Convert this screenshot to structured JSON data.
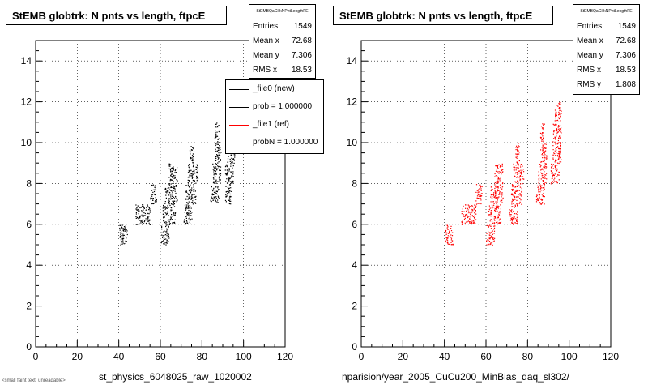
{
  "panels": [
    {
      "title": "StEMB globtrk: N pnts vs length, ftpcE",
      "stats_header": "StEMBQaGlrkNPntLengthFE",
      "stats": [
        {
          "label": "Entries",
          "value": "1549"
        },
        {
          "label": "Mean x",
          "value": "72.68"
        },
        {
          "label": "Mean y",
          "value": "7.306"
        },
        {
          "label": "RMS x",
          "value": "18.53"
        }
      ],
      "x_file_label": "st_physics_6048025_raw_1020002"
    },
    {
      "title": "StEMB globtrk: N pnts vs length, ftpcE",
      "stats_header": "StEMBQaGlrkNPntLengthFE",
      "stats": [
        {
          "label": "Entries",
          "value": "1549"
        },
        {
          "label": "Mean x",
          "value": "72.68"
        },
        {
          "label": "Mean y",
          "value": "7.306"
        },
        {
          "label": "RMS x",
          "value": "18.53"
        },
        {
          "label": "RMS y",
          "value": "1.808"
        }
      ],
      "x_file_label": "nparision/year_2005_CuCu200_MinBias_daq_sl302/"
    }
  ],
  "legend": {
    "entries": [
      {
        "label": "_file0 (new)",
        "color": "#000000"
      },
      {
        "label": "prob = 1.000000",
        "color": "#000000"
      },
      {
        "label": "_file1 (ref)",
        "color": "#ff0000"
      },
      {
        "label": "probN = 1.000000",
        "color": "#ff0000"
      }
    ]
  },
  "footer": "<small faint text, unreadable>",
  "chart_data": [
    {
      "type": "scatter",
      "title": "StEMB globtrk: N pnts vs length, ftpcE",
      "xlabel": "st_physics_6048025_raw_1020002",
      "ylabel": "",
      "xlim": [
        0,
        120
      ],
      "ylim": [
        0,
        15
      ],
      "x_ticks": [
        0,
        20,
        40,
        60,
        80,
        100,
        120
      ],
      "y_ticks": [
        0,
        2,
        4,
        6,
        8,
        10,
        12,
        14
      ],
      "grid": true,
      "series": [
        {
          "color": "#000000",
          "bands": [
            {
              "y": 5,
              "x": [
                40,
                44
              ]
            },
            {
              "y": 6,
              "x": [
                48,
                55
              ]
            },
            {
              "y": 7,
              "x": [
                55,
                58
              ]
            },
            {
              "y": 5,
              "x": [
                60,
                64
              ]
            },
            {
              "y": 6,
              "x": [
                61,
                67
              ]
            },
            {
              "y": 7,
              "x": [
                62,
                68
              ]
            },
            {
              "y": 8,
              "x": [
                64,
                68
              ]
            },
            {
              "y": 6,
              "x": [
                71,
                75
              ]
            },
            {
              "y": 7,
              "x": [
                72,
                77
              ]
            },
            {
              "y": 8,
              "x": [
                73,
                78
              ]
            },
            {
              "y": 9,
              "x": [
                74,
                76
              ]
            },
            {
              "y": 7,
              "x": [
                84,
                88
              ]
            },
            {
              "y": 8,
              "x": [
                85,
                89
              ]
            },
            {
              "y": 9,
              "x": [
                86,
                89
              ]
            },
            {
              "y": 10,
              "x": [
                86,
                88
              ]
            },
            {
              "y": 7,
              "x": [
                91,
                94
              ]
            },
            {
              "y": 8,
              "x": [
                91,
                95
              ]
            },
            {
              "y": 9,
              "x": [
                92,
                96
              ]
            }
          ]
        }
      ]
    },
    {
      "type": "scatter",
      "title": "StEMB globtrk: N pnts vs length, ftpcE",
      "xlabel": "nparision/year_2005_CuCu200_MinBias_daq_sl302/",
      "ylabel": "",
      "xlim": [
        0,
        120
      ],
      "ylim": [
        0,
        15
      ],
      "x_ticks": [
        0,
        20,
        40,
        60,
        80,
        100,
        120
      ],
      "y_ticks": [
        0,
        2,
        4,
        6,
        8,
        10,
        12,
        14
      ],
      "grid": true,
      "series": [
        {
          "color": "#ff0000",
          "bands": [
            {
              "y": 5,
              "x": [
                40,
                44
              ]
            },
            {
              "y": 6,
              "x": [
                48,
                55
              ]
            },
            {
              "y": 7,
              "x": [
                55,
                58
              ]
            },
            {
              "y": 5,
              "x": [
                60,
                64
              ]
            },
            {
              "y": 6,
              "x": [
                61,
                67
              ]
            },
            {
              "y": 7,
              "x": [
                62,
                68
              ]
            },
            {
              "y": 8,
              "x": [
                64,
                68
              ]
            },
            {
              "y": 6,
              "x": [
                71,
                75
              ]
            },
            {
              "y": 7,
              "x": [
                72,
                77
              ]
            },
            {
              "y": 8,
              "x": [
                73,
                78
              ]
            },
            {
              "y": 9,
              "x": [
                74,
                76
              ]
            },
            {
              "y": 7,
              "x": [
                84,
                88
              ]
            },
            {
              "y": 8,
              "x": [
                85,
                89
              ]
            },
            {
              "y": 9,
              "x": [
                86,
                89
              ]
            },
            {
              "y": 10,
              "x": [
                86,
                88
              ]
            },
            {
              "y": 8,
              "x": [
                91,
                95
              ]
            },
            {
              "y": 9,
              "x": [
                92,
                96
              ]
            },
            {
              "y": 10,
              "x": [
                92,
                96
              ]
            },
            {
              "y": 11,
              "x": [
                93,
                96
              ]
            }
          ]
        }
      ]
    }
  ]
}
